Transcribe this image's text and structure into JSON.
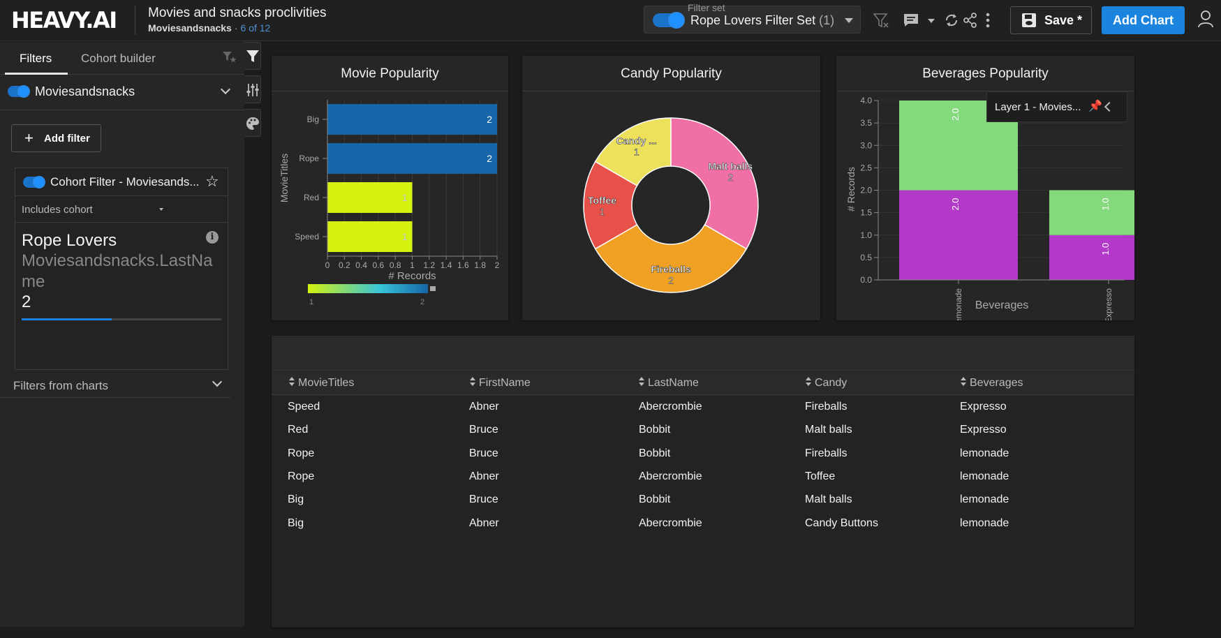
{
  "header": {
    "logo": "HEAVY.AI",
    "title": "Movies and snacks proclivities",
    "subtitle_source": "Moviesandsnacks",
    "subtitle_dot": "·",
    "subtitle_count": "6 of 12",
    "filterset_label": "Filter set",
    "filterset_name": "Rope Lovers Filter Set",
    "filterset_count": "(1)",
    "save_label": "Save *",
    "add_chart_label": "Add Chart"
  },
  "left_panel": {
    "tabs": [
      "Filters",
      "Cohort builder"
    ],
    "datasource": "Moviesandsnacks",
    "add_filter_label": "Add filter",
    "cohort_filter": {
      "title": "Cohort Filter - Moviesands...",
      "mode": "Includes cohort",
      "name": "Rope Lovers",
      "column": "Moviesandsnacks.LastName",
      "value": "2",
      "progress": 0.45
    },
    "filters_from_charts_label": "Filters from charts"
  },
  "charts": {
    "movie": {
      "title": "Movie Popularity"
    },
    "candy": {
      "title": "Candy Popularity"
    },
    "beverages": {
      "title": "Beverages Popularity",
      "layer_label": "Layer 1 - Movies..."
    }
  },
  "chart_data": [
    {
      "type": "bar",
      "orientation": "horizontal",
      "title": "Movie Popularity",
      "categories": [
        "Big",
        "Rope",
        "Red",
        "Speed"
      ],
      "values": [
        2,
        2,
        1,
        1
      ],
      "xlabel": "# Records",
      "ylabel": "MovieTitles",
      "xlim": [
        0,
        2
      ],
      "x_ticks": [
        "0",
        "0.2",
        "0.4",
        "0.6",
        "0.8",
        "1",
        "1.2",
        "1.4",
        "1.6",
        "1.8",
        "2"
      ],
      "colors": [
        "#1565a8",
        "#1565a8",
        "#d4f20e",
        "#d4f20e"
      ],
      "legend": {
        "type": "gradient",
        "min": "1",
        "max": "2",
        "colors": [
          "#d4f20e",
          "#1565a8"
        ]
      }
    },
    {
      "type": "pie",
      "title": "Candy Popularity",
      "labels": [
        "Malt balls",
        "Fireballs",
        "Toffee",
        "Candy ..."
      ],
      "values": [
        2,
        2,
        1,
        1
      ],
      "colors": [
        "#f06fa5",
        "#f0a022",
        "#e8504a",
        "#ede05a"
      ]
    },
    {
      "type": "bar",
      "stacked": true,
      "title": "Beverages Popularity",
      "categories": [
        "lemonade",
        "Expresso"
      ],
      "series": [
        {
          "values": [
            2.0,
            1.0
          ],
          "color": "#b339c9",
          "labels": [
            "2.0",
            "1.0"
          ]
        },
        {
          "values": [
            2.0,
            1.0
          ],
          "color": "#84d97c",
          "labels": [
            "2.0",
            "1.0"
          ]
        }
      ],
      "xlabel": "Beverages",
      "ylabel": "# Records",
      "ylim": [
        0,
        4
      ],
      "y_ticks": [
        "0.0",
        "0.5",
        "1.0",
        "1.5",
        "2.0",
        "2.5",
        "3.0",
        "3.5",
        "4.0"
      ]
    }
  ],
  "table": {
    "columns": [
      "MovieTitles",
      "FirstName",
      "LastName",
      "Candy",
      "Beverages"
    ],
    "rows": [
      [
        "Speed",
        "Abner",
        "Abercrombie",
        "Fireballs",
        "Expresso"
      ],
      [
        "Red",
        "Bruce",
        "Bobbit",
        "Malt balls",
        "Expresso"
      ],
      [
        "Rope",
        "Bruce",
        "Bobbit",
        "Fireballs",
        "lemonade"
      ],
      [
        "Rope",
        "Abner",
        "Abercrombie",
        "Toffee",
        "lemonade"
      ],
      [
        "Big",
        "Bruce",
        "Bobbit",
        "Malt balls",
        "lemonade"
      ],
      [
        "Big",
        "Abner",
        "Abercrombie",
        "Candy Buttons",
        "lemonade"
      ]
    ]
  },
  "colors": {
    "accent": "#1a84df",
    "background": "#1c1c1c",
    "panel": "#262626"
  },
  "icons": [
    "filter-clear-icon",
    "comment-icon",
    "refresh-icon",
    "share-icon",
    "more-vertical-icon",
    "save-disk-icon",
    "user-icon",
    "filter-icon",
    "sliders-icon",
    "palette-icon",
    "star-icon",
    "info-icon",
    "pin-icon"
  ]
}
